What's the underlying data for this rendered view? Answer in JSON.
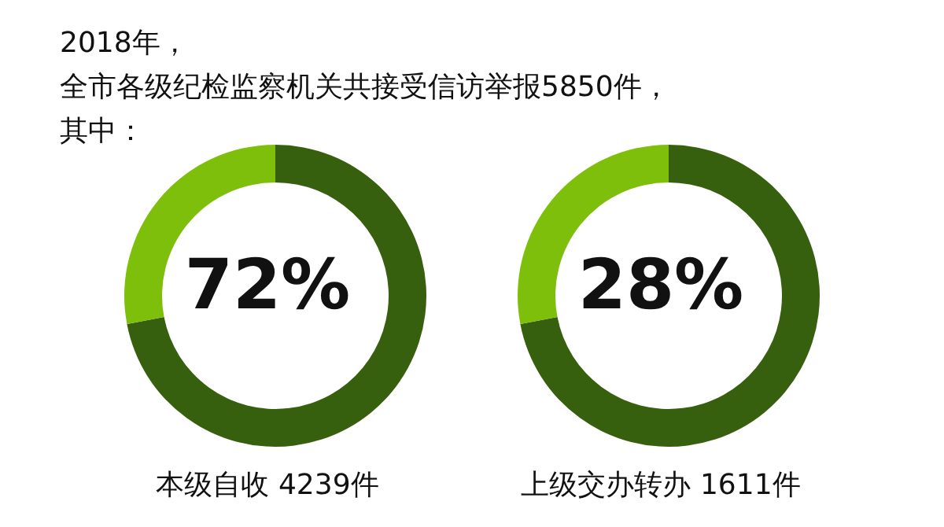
{
  "chart_data": [
    {
      "type": "donut",
      "title": "2018年，全市各级纪检监察机关共接受信访举报5850件，其中：",
      "categories": [
        null,
        null
      ],
      "values": [
        72,
        28
      ],
      "colors": [
        "#36600e",
        "#7dbf0a"
      ],
      "annotations": [
        "72%",
        "本级自收 4239件"
      ]
    },
    {
      "type": "donut",
      "categories": [
        null,
        null
      ],
      "values": [
        72,
        28
      ],
      "colors": [
        "#36600e",
        "#7dbf0a"
      ],
      "annotations": [
        "28%",
        "上级交办转办 1611件"
      ]
    }
  ]
}
